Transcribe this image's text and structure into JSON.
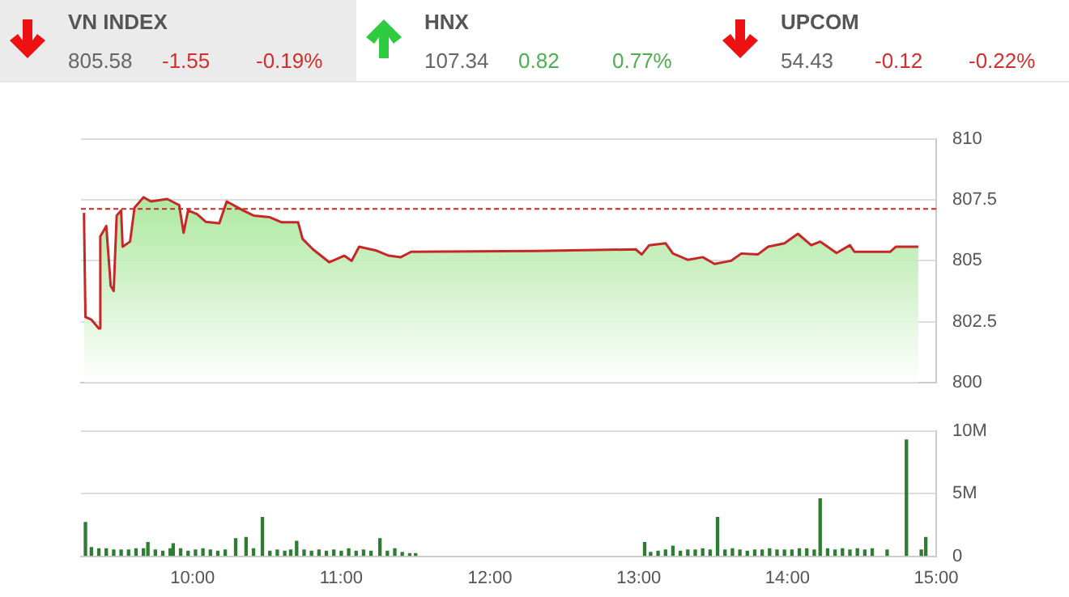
{
  "chart_data": [
    {
      "type": "other",
      "annotations": [
        "VN INDEX",
        "805.58",
        "-1.55",
        "-0.19%",
        "HNX",
        "107.34",
        "0.82",
        "0.77%",
        "UPCOM",
        "54.43",
        "-0.12",
        "-0.22%"
      ]
    },
    {
      "type": "area",
      "xlim": [
        9.25,
        15
      ],
      "ylim": [
        800,
        810
      ],
      "yticks": [
        800,
        802.5,
        805,
        807.5,
        810
      ],
      "grid": "y",
      "tick_labels": "y",
      "ref_lines": [
        {
          "axis": "y",
          "value": 807.13,
          "color": "#c62828",
          "line_style": "dashed"
        }
      ],
      "series": [
        {
          "color": "#c62828",
          "x": [
            9.27,
            9.28,
            9.32,
            9.37,
            9.38,
            9.42,
            9.45,
            9.47,
            9.49,
            9.52,
            9.53,
            9.58,
            9.61,
            9.67,
            9.72,
            9.83,
            9.91,
            9.94,
            9.97,
            10.03,
            10.09,
            10.18,
            10.23,
            10.34,
            10.41,
            10.52,
            10.6,
            10.71,
            10.74,
            10.81,
            10.92,
            11.02,
            11.07,
            11.12,
            11.23,
            11.32,
            11.4,
            11.47,
            12.31,
            12.98,
            13.02,
            13.07,
            13.18,
            13.23,
            13.33,
            13.43,
            13.51,
            13.62,
            13.69,
            13.8,
            13.87,
            13.98,
            14.07,
            14.16,
            14.22,
            14.33,
            14.42,
            14.45,
            14.69,
            14.73,
            14.88
          ],
          "values": [
            806.97,
            802.69,
            802.58,
            802.22,
            806.0,
            806.43,
            803.97,
            803.76,
            806.86,
            807.07,
            805.58,
            805.79,
            807.18,
            807.61,
            807.44,
            807.54,
            807.29,
            806.15,
            807.07,
            806.92,
            806.6,
            806.54,
            807.44,
            807.07,
            806.86,
            806.79,
            806.58,
            806.58,
            805.9,
            805.47,
            804.94,
            805.21,
            805.0,
            805.58,
            805.43,
            805.21,
            805.15,
            805.37,
            805.4,
            805.47,
            805.26,
            805.64,
            805.72,
            805.3,
            805.04,
            805.15,
            804.87,
            805.0,
            805.3,
            805.26,
            805.58,
            805.72,
            806.11,
            805.64,
            805.79,
            805.32,
            805.64,
            805.37,
            805.37,
            805.58,
            805.58
          ]
        }
      ]
    },
    {
      "type": "bar",
      "xlim": [
        9.25,
        15
      ],
      "xticks": [
        {
          "value": 10,
          "label": "10:00"
        },
        {
          "value": 11,
          "label": "11:00"
        },
        {
          "value": 12,
          "label": "12:00"
        },
        {
          "value": 13,
          "label": "13:00"
        },
        {
          "value": 14,
          "label": "14:00"
        },
        {
          "value": 15,
          "label": "15:00"
        }
      ],
      "ylim": [
        0,
        10
      ],
      "yticks": [
        0,
        {
          "value": 5,
          "label": "5M"
        },
        {
          "value": 10,
          "label": "10M"
        }
      ],
      "grid": "y",
      "series": [
        {
          "color": "#2e7d32",
          "x": [
            9.28,
            9.32,
            9.37,
            9.42,
            9.47,
            9.52,
            9.57,
            9.62,
            9.67,
            9.7,
            9.75,
            9.8,
            9.85,
            9.87,
            9.92,
            9.97,
            10.02,
            10.07,
            10.12,
            10.17,
            10.22,
            10.29,
            10.36,
            10.41,
            10.47,
            10.52,
            10.57,
            10.62,
            10.66,
            10.7,
            10.75,
            10.8,
            10.85,
            10.9,
            10.95,
            11.0,
            11.05,
            11.1,
            11.15,
            11.2,
            11.26,
            11.31,
            11.36,
            11.41,
            11.46,
            11.5,
            13.04,
            13.08,
            13.13,
            13.18,
            13.23,
            13.28,
            13.33,
            13.38,
            13.43,
            13.48,
            13.53,
            13.58,
            13.63,
            13.68,
            13.73,
            13.78,
            13.83,
            13.88,
            13.93,
            13.98,
            14.03,
            14.08,
            14.13,
            14.18,
            14.22,
            14.27,
            14.32,
            14.37,
            14.42,
            14.47,
            14.52,
            14.57,
            14.67,
            14.8,
            14.9,
            14.93
          ],
          "values": [
            2.7,
            0.7,
            0.6,
            0.6,
            0.5,
            0.5,
            0.5,
            0.6,
            0.6,
            1.1,
            0.5,
            0.4,
            0.6,
            1.0,
            0.6,
            0.4,
            0.5,
            0.6,
            0.5,
            0.4,
            0.5,
            1.4,
            1.5,
            0.6,
            3.1,
            0.4,
            0.5,
            0.4,
            0.5,
            1.2,
            0.5,
            0.4,
            0.5,
            0.4,
            0.5,
            0.4,
            0.6,
            0.4,
            0.5,
            0.4,
            1.4,
            0.4,
            0.6,
            0.3,
            0.2,
            0.2,
            1.1,
            0.3,
            0.4,
            0.5,
            0.8,
            0.4,
            0.5,
            0.5,
            0.6,
            0.5,
            3.1,
            0.5,
            0.6,
            0.5,
            0.4,
            0.5,
            0.5,
            0.6,
            0.5,
            0.5,
            0.5,
            0.6,
            0.6,
            0.5,
            4.6,
            0.6,
            0.5,
            0.6,
            0.5,
            0.6,
            0.5,
            0.6,
            0.5,
            9.3,
            0.5,
            1.5
          ]
        }
      ]
    }
  ]
}
